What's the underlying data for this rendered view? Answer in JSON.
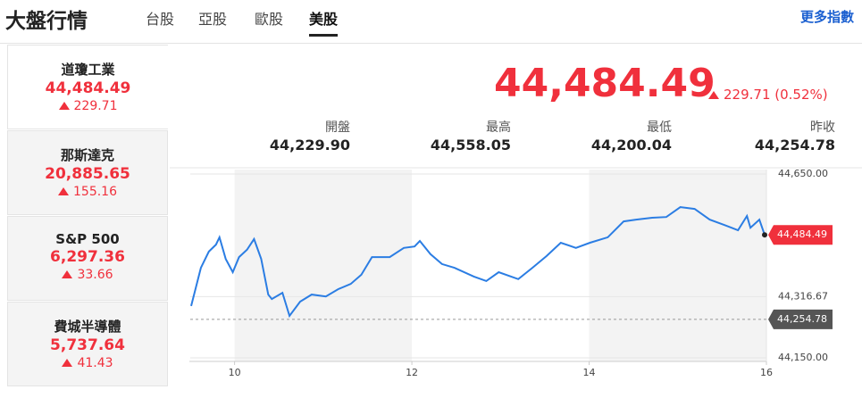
{
  "header": {
    "title": "大盤行情",
    "tabs": [
      "台股",
      "亞股",
      "歐股",
      "美股"
    ],
    "active_tab": 3,
    "more_link": "更多指數"
  },
  "indices": [
    {
      "name": "道瓊工業",
      "price": "44,484.49",
      "change": "229.71"
    },
    {
      "name": "那斯達克",
      "price": "20,885.65",
      "change": "155.16"
    },
    {
      "name": "S&P 500",
      "price": "6,297.36",
      "change": "33.66"
    },
    {
      "name": "費城半導體",
      "price": "5,737.64",
      "change": "41.43"
    }
  ],
  "quote": {
    "price": "44,484.49",
    "change": "229.71 (0.52%)"
  },
  "stats": [
    {
      "label": "開盤",
      "value": "44,229.90"
    },
    {
      "label": "最高",
      "value": "44,558.05"
    },
    {
      "label": "最低",
      "value": "44,200.04"
    },
    {
      "label": "昨收",
      "value": "44,254.78"
    }
  ],
  "chart_data": {
    "type": "line",
    "color": "#2b7de3",
    "x": [
      9.51,
      9.62,
      9.71,
      9.79,
      9.83,
      9.9,
      9.98,
      10.05,
      10.14,
      10.22,
      10.3,
      10.38,
      10.42,
      10.54,
      10.62,
      10.74,
      10.87,
      11.03,
      11.17,
      11.31,
      11.43,
      11.55,
      11.75,
      11.91,
      12.03,
      12.09,
      12.21,
      12.34,
      12.48,
      12.7,
      12.84,
      12.98,
      13.2,
      13.36,
      13.52,
      13.68,
      13.85,
      14.01,
      14.21,
      14.39,
      14.53,
      14.71,
      14.87,
      15.03,
      15.19,
      15.36,
      15.52,
      15.68,
      15.78,
      15.82,
      15.92,
      15.98
    ],
    "values": [
      44291,
      44395,
      44439,
      44458,
      44478,
      44419,
      44383,
      44424,
      44444,
      44473,
      44419,
      44322,
      44310,
      44327,
      44264,
      44303,
      44322,
      44317,
      44337,
      44351,
      44376,
      44424,
      44424,
      44449,
      44453,
      44468,
      44432,
      44405,
      44395,
      44371,
      44359,
      44383,
      44364,
      44395,
      44427,
      44463,
      44449,
      44463,
      44478,
      44521,
      44526,
      44531,
      44533,
      44560,
      44555,
      44526,
      44512,
      44497,
      44536,
      44504,
      44526,
      44484.49
    ],
    "xlim": [
      9.5,
      16
    ],
    "xticks": [
      10,
      12,
      14,
      16
    ],
    "ylim": [
      44150,
      44650
    ],
    "yticks": [
      {
        "value": 44150,
        "label": "44,150.00"
      },
      {
        "value": 44316.67,
        "label": "44,316.67"
      },
      {
        "value": 44650,
        "label": "44,650.00"
      }
    ],
    "grid": true,
    "last": {
      "value": 44484.49,
      "label": "44,484.49",
      "color": "#f0303c"
    },
    "prev_close": {
      "value": 44254.78,
      "label": "44,254.78",
      "color": "#555555"
    }
  }
}
